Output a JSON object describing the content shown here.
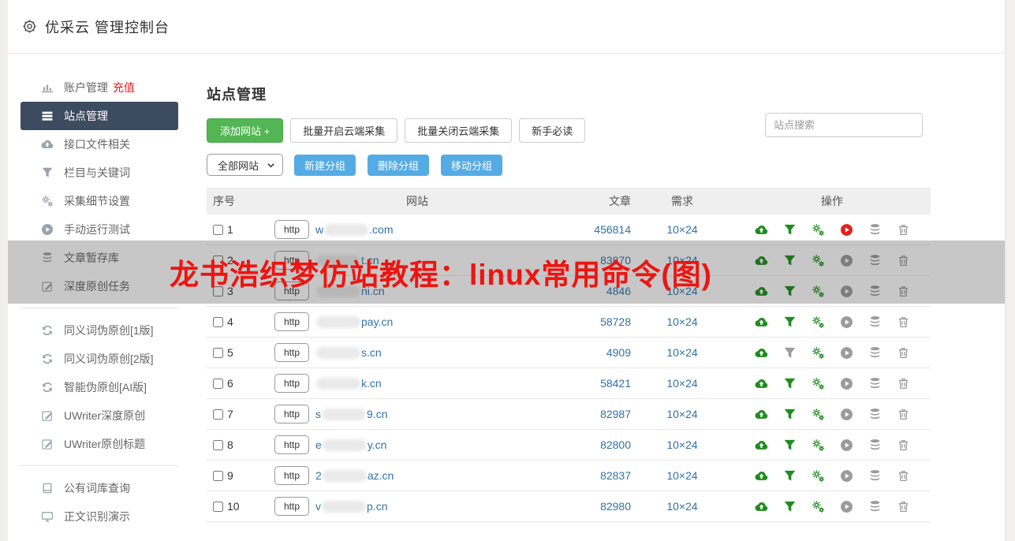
{
  "header": {
    "title": "优采云 管理控制台"
  },
  "sidebar": {
    "items": [
      {
        "label": "账户管理",
        "extra": "充值"
      },
      {
        "label": "站点管理"
      },
      {
        "label": "接口文件相关"
      },
      {
        "label": "栏目与关键词"
      },
      {
        "label": "采集细节设置"
      },
      {
        "label": "手动运行测试"
      },
      {
        "label": "文章暂存库"
      },
      {
        "label": "深度原创任务"
      },
      {
        "label": "同义词伪原创[1版]"
      },
      {
        "label": "同义词伪原创[2版]"
      },
      {
        "label": "智能伪原创[AI版]"
      },
      {
        "label": "UWriter深度原创"
      },
      {
        "label": "UWriter原创标题"
      },
      {
        "label": "公有词库查询"
      },
      {
        "label": "正文识别演示"
      }
    ]
  },
  "main": {
    "title": "站点管理",
    "toolbar": {
      "add_site": "添加网站 +",
      "batch_open": "批量开启云端采集",
      "batch_close": "批量关闭云端采集",
      "newbie_guide": "新手必读"
    },
    "group_bar": {
      "group_select": "全部网站",
      "new_group": "新建分组",
      "delete_group": "删除分组",
      "move_group": "移动分组"
    },
    "search_placeholder": "站点搜索"
  },
  "table": {
    "headers": [
      "序号",
      "网站",
      "文章",
      "需求",
      "操作"
    ],
    "http_label": "http",
    "action_icon_names": [
      "cloud-upload",
      "filter",
      "gears",
      "play",
      "database",
      "trash"
    ],
    "rows": [
      {
        "seq": "1",
        "prefix": "w",
        "suffix": ".com",
        "articles": "456814",
        "demand": "10×24",
        "icons": [
          "green",
          "green",
          "green",
          "red",
          "gray",
          "gray"
        ]
      },
      {
        "seq": "2",
        "prefix": "",
        "suffix": "t.cn",
        "articles": "83870",
        "demand": "10×24",
        "icons": [
          "green",
          "green",
          "green",
          "gray",
          "gray",
          "gray"
        ]
      },
      {
        "seq": "3",
        "prefix": "",
        "suffix": "ni.cn",
        "articles": "4846",
        "demand": "10×24",
        "icons": [
          "green",
          "green",
          "green",
          "gray",
          "gray",
          "gray"
        ]
      },
      {
        "seq": "4",
        "prefix": "",
        "suffix": "pay.cn",
        "articles": "58728",
        "demand": "10×24",
        "icons": [
          "green",
          "green",
          "green",
          "gray",
          "gray",
          "gray"
        ]
      },
      {
        "seq": "5",
        "prefix": "",
        "suffix": "s.cn",
        "articles": "4909",
        "demand": "10×24",
        "icons": [
          "green",
          "gray",
          "green",
          "gray",
          "gray",
          "gray"
        ]
      },
      {
        "seq": "6",
        "prefix": "",
        "suffix": "k.cn",
        "articles": "58421",
        "demand": "10×24",
        "icons": [
          "green",
          "green",
          "green",
          "gray",
          "gray",
          "gray"
        ]
      },
      {
        "seq": "7",
        "prefix": "s",
        "suffix": "9.cn",
        "articles": "82987",
        "demand": "10×24",
        "icons": [
          "green",
          "green",
          "green",
          "gray",
          "gray",
          "gray"
        ]
      },
      {
        "seq": "8",
        "prefix": "e",
        "suffix": "y.cn",
        "articles": "82800",
        "demand": "10×24",
        "icons": [
          "green",
          "green",
          "green",
          "gray",
          "gray",
          "gray"
        ]
      },
      {
        "seq": "9",
        "prefix": "2",
        "suffix": "az.cn",
        "articles": "82837",
        "demand": "10×24",
        "icons": [
          "green",
          "green",
          "green",
          "gray",
          "gray",
          "gray"
        ]
      },
      {
        "seq": "10",
        "prefix": "v",
        "suffix": "p.cn",
        "articles": "82980",
        "demand": "10×24",
        "icons": [
          "green",
          "green",
          "green",
          "gray",
          "gray",
          "gray"
        ]
      }
    ]
  },
  "watermark": {
    "text": "龙书浩织梦仿站教程：linux常用命令(图)",
    "color": "#ee1410"
  },
  "accents": {
    "green_button": "#53b553",
    "blue_button": "#55abe4",
    "link_blue": "#3071a9",
    "icon_green": "#1e8c1e",
    "icon_red": "#e02020",
    "sidebar_selected_bg": "#3c4b5f",
    "recharge_red": "#e3201f",
    "band_overlay": "rgba(40,40,40,0.26)"
  }
}
